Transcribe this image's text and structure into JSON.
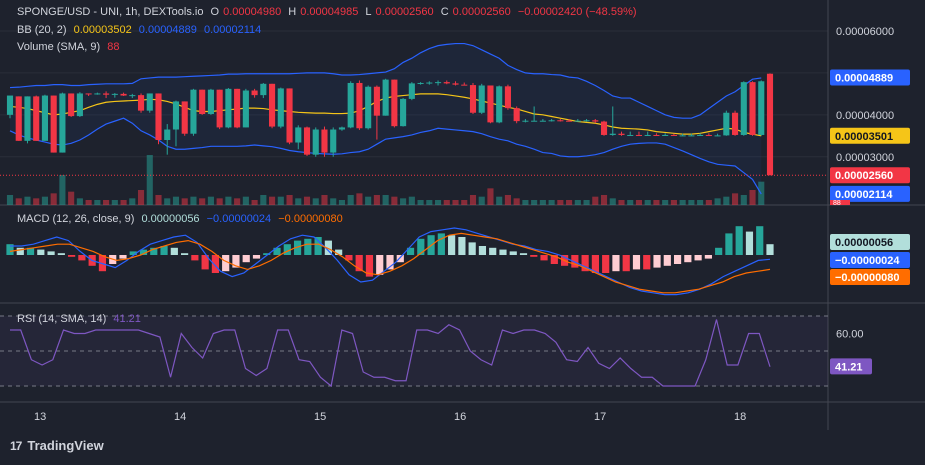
{
  "colors": {
    "up": "#26a69a",
    "down": "#f23645",
    "bb": "#2962ff",
    "bb_basis": "#f5c518",
    "macd": "#2962ff",
    "signal": "#ff6d00",
    "rsi": "#7e57c2",
    "axis_text": "#d1d4dc",
    "grid": "#2a2e39"
  },
  "header": {
    "symbol": "SPONGE/USD - UNI, 1h, DEXTools.io",
    "o_label": "O",
    "o_val": "0.00004980",
    "h_label": "H",
    "h_val": "0.00004985",
    "l_label": "L",
    "l_val": "0.00002560",
    "c_label": "C",
    "c_val": "0.00002560",
    "change": "−0.00002420 (−48.59%)"
  },
  "bb_legend": {
    "name": "BB (20, 2)",
    "basis": "0.00003502",
    "upper": "0.00004889",
    "lower": "0.00002114"
  },
  "volume_legend": {
    "name": "Volume (SMA, 9)",
    "value": "88"
  },
  "macd_legend": {
    "name": "MACD (12, 26, close, 9)",
    "hist": "0.00000056",
    "macd": "−0.00000024",
    "signal": "−0.00000080"
  },
  "rsi_legend": {
    "name": "RSI (14, SMA, 14)",
    "value": "41.21"
  },
  "brand": {
    "name": "TradingView",
    "logo": "17"
  },
  "chart_data": [
    {
      "type": "candlestick",
      "title": "SPONGE/USD - UNI, 1h, DEXTools.io",
      "x_ticks": [
        "13",
        "14",
        "15",
        "16",
        "17",
        "18"
      ],
      "y_ticks": [
        "0.00006000",
        "0.00004000",
        "0.00003000"
      ],
      "ylim": [
        1.85e-05,
        6.5e-05
      ],
      "price_labels": {
        "upper": "0.00004889",
        "basis": "0.00003501",
        "close": "0.00002560",
        "lower": "0.00002114",
        "volume": "88"
      },
      "candles": [
        [
          4e-05,
          4.44e-05,
          3.92e-05,
          4.46e-05
        ],
        [
          4.44e-05,
          4.44e-05,
          3.38e-05,
          3.38e-05
        ],
        [
          3.38e-05,
          4.44e-05,
          3.32e-05,
          4.44e-05
        ],
        [
          4.44e-05,
          4.46e-05,
          3.38e-05,
          3.38e-05
        ],
        [
          3.38e-05,
          4.48e-05,
          3.38e-05,
          4.46e-05
        ],
        [
          4.46e-05,
          4.46e-05,
          3.1e-05,
          3.1e-05
        ],
        [
          3.1e-05,
          4.53e-05,
          3.1e-05,
          4.51e-05
        ],
        [
          4.51e-05,
          4.51e-05,
          3.95e-05,
          3.97e-05
        ],
        [
          3.97e-05,
          4.54e-05,
          3.95e-05,
          4.51e-05
        ],
        [
          4.51e-05,
          4.51e-05,
          4.45e-05,
          4.49e-05
        ],
        [
          4.49e-05,
          4.53e-05,
          4.48e-05,
          4.51e-05
        ],
        [
          4.51e-05,
          4.56e-05,
          4.4e-05,
          4.48e-05
        ],
        [
          4.48e-05,
          4.52e-05,
          4.41e-05,
          4.5e-05
        ],
        [
          4.5e-05,
          4.53e-05,
          4.45e-05,
          4.46e-05
        ],
        [
          4.46e-05,
          4.5e-05,
          4.4e-05,
          4.47e-05
        ],
        [
          4.47e-05,
          4.51e-05,
          4.05e-05,
          4.1e-05
        ],
        [
          4.1e-05,
          4.51e-05,
          4.05e-05,
          4.51e-05
        ],
        [
          4.51e-05,
          4.51e-05,
          3.3e-05,
          3.4e-05
        ],
        [
          3.4e-05,
          3.78e-05,
          3.05e-05,
          3.65e-05
        ],
        [
          3.65e-05,
          4.34e-05,
          3.25e-05,
          4.32e-05
        ],
        [
          4.32e-05,
          4.32e-05,
          3.5e-05,
          3.55e-05
        ],
        [
          3.55e-05,
          4.62e-05,
          3.5e-05,
          4.6e-05
        ],
        [
          4.6e-05,
          4.6e-05,
          4e-05,
          4.02e-05
        ],
        [
          4.02e-05,
          4.62e-05,
          4e-05,
          4.6e-05
        ],
        [
          4.6e-05,
          4.6e-05,
          3.66e-05,
          3.7e-05
        ],
        [
          3.7e-05,
          4.64e-05,
          3.68e-05,
          4.62e-05
        ],
        [
          4.62e-05,
          4.62e-05,
          3.68e-05,
          3.7e-05
        ],
        [
          3.7e-05,
          4.62e-05,
          3.7e-05,
          4.58e-05
        ],
        [
          4.58e-05,
          4.62e-05,
          4.41e-05,
          4.47e-05
        ],
        [
          4.47e-05,
          4.76e-05,
          4.4e-05,
          4.74e-05
        ],
        [
          4.74e-05,
          4.74e-05,
          3.68e-05,
          3.72e-05
        ],
        [
          3.72e-05,
          4.65e-05,
          3.68e-05,
          4.63e-05
        ],
        [
          4.63e-05,
          4.63e-05,
          3.3e-05,
          3.34e-05
        ],
        [
          3.34e-05,
          3.75e-05,
          3.18e-05,
          3.7e-05
        ],
        [
          3.7e-05,
          3.72e-05,
          3.02e-05,
          3.05e-05
        ],
        [
          3.05e-05,
          3.7e-05,
          3e-05,
          3.65e-05
        ],
        [
          3.65e-05,
          3.72e-05,
          3e-05,
          3.1e-05
        ],
        [
          3.1e-05,
          3.7e-05,
          3e-05,
          3.65e-05
        ],
        [
          3.65e-05,
          3.72e-05,
          3.62e-05,
          3.7e-05
        ],
        [
          3.7e-05,
          4.8e-05,
          3.68e-05,
          4.76e-05
        ],
        [
          4.76e-05,
          4.82e-05,
          3.64e-05,
          3.68e-05
        ],
        [
          3.68e-05,
          4.7e-05,
          3.65e-05,
          4.67e-05
        ],
        [
          4.67e-05,
          4.7e-05,
          3.41e-05,
          3.98e-05
        ],
        [
          3.98e-05,
          4.86e-05,
          3.98e-05,
          4.84e-05
        ],
        [
          4.84e-05,
          4.84e-05,
          3.7e-05,
          3.73e-05
        ],
        [
          3.73e-05,
          4.4e-05,
          3.72e-05,
          4.38e-05
        ],
        [
          4.38e-05,
          4.78e-05,
          4.35e-05,
          4.75e-05
        ],
        [
          4.75e-05,
          4.78e-05,
          4.72e-05,
          4.76e-05
        ],
        [
          4.76e-05,
          4.8e-05,
          4.72e-05,
          4.77e-05
        ],
        [
          4.77e-05,
          4.82e-05,
          4.7e-05,
          4.78e-05
        ],
        [
          4.78e-05,
          4.82e-05,
          4.73e-05,
          4.75e-05
        ],
        [
          4.75e-05,
          4.8e-05,
          4.7e-05,
          4.72e-05
        ],
        [
          4.72e-05,
          4.77e-05,
          4.7e-05,
          4.71e-05
        ],
        [
          4.71e-05,
          4.76e-05,
          4.02e-05,
          4.05e-05
        ],
        [
          4.05e-05,
          4.74e-05,
          4.02e-05,
          4.7e-05
        ],
        [
          4.7e-05,
          4.7e-05,
          3.8e-05,
          3.82e-05
        ],
        [
          3.82e-05,
          4.7e-05,
          3.8e-05,
          4.68e-05
        ],
        [
          4.68e-05,
          4.72e-05,
          4.12e-05,
          4.16e-05
        ],
        [
          4.16e-05,
          4.2e-05,
          3.8e-05,
          3.85e-05
        ],
        [
          3.85e-05,
          3.9e-05,
          3.82e-05,
          3.86e-05
        ],
        [
          3.86e-05,
          4.2e-05,
          3.84e-05,
          3.86e-05
        ],
        [
          3.86e-05,
          3.9e-05,
          3.84e-05,
          3.86e-05
        ],
        [
          3.86e-05,
          3.9e-05,
          3.84e-05,
          3.87e-05
        ],
        [
          3.87e-05,
          3.9e-05,
          3.84e-05,
          3.86e-05
        ],
        [
          3.86e-05,
          3.9e-05,
          3.84e-05,
          3.85e-05
        ],
        [
          3.85e-05,
          3.9e-05,
          3.84e-05,
          3.86e-05
        ],
        [
          3.86e-05,
          3.9e-05,
          3.84e-05,
          3.87e-05
        ],
        [
          3.87e-05,
          3.9e-05,
          3.8e-05,
          3.84e-05
        ],
        [
          3.84e-05,
          3.86e-05,
          3.5e-05,
          3.52e-05
        ],
        [
          3.52e-05,
          4.2e-05,
          3.5e-05,
          3.55e-05
        ],
        [
          3.55e-05,
          3.6e-05,
          3.5e-05,
          3.52e-05
        ],
        [
          3.52e-05,
          3.6e-05,
          3.5e-05,
          3.52e-05
        ],
        [
          3.52e-05,
          3.6e-05,
          3.5e-05,
          3.51e-05
        ],
        [
          3.51e-05,
          3.6e-05,
          3.5e-05,
          3.52e-05
        ],
        [
          3.52e-05,
          3.56e-05,
          3.5e-05,
          3.51e-05
        ],
        [
          3.51e-05,
          3.56e-05,
          3.5e-05,
          3.52e-05
        ],
        [
          3.52e-05,
          3.55e-05,
          3.5e-05,
          3.51e-05
        ],
        [
          3.51e-05,
          3.55e-05,
          3.5e-05,
          3.51e-05
        ],
        [
          3.51e-05,
          3.55e-05,
          3.5e-05,
          3.51e-05
        ],
        [
          3.51e-05,
          3.56e-05,
          3.5e-05,
          3.52e-05
        ],
        [
          3.52e-05,
          3.56e-05,
          3.5e-05,
          3.51e-05
        ],
        [
          3.51e-05,
          3.55e-05,
          3.5e-05,
          3.51e-05
        ],
        [
          3.51e-05,
          4.1e-05,
          3.5e-05,
          4.05e-05
        ],
        [
          4.05e-05,
          4.1e-05,
          3.5e-05,
          3.52e-05
        ],
        [
          3.52e-05,
          4.8e-05,
          3.5e-05,
          4.78e-05
        ],
        [
          4.78e-05,
          4.8e-05,
          3.5e-05,
          3.52e-05
        ],
        [
          3.52e-05,
          4.82e-05,
          3.5e-05,
          4.8e-05
        ],
        [
          4.98e-05,
          4.99e-05,
          2.56e-05,
          2.56e-05
        ]
      ],
      "volume": [
        6,
        4,
        5,
        4,
        5,
        7,
        18,
        8,
        4,
        3,
        3,
        3,
        3,
        3,
        4,
        9,
        30,
        6,
        4,
        5,
        4,
        5,
        4,
        5,
        4,
        5,
        4,
        5,
        3,
        6,
        5,
        5,
        6,
        4,
        5,
        4,
        6,
        4,
        3,
        6,
        7,
        5,
        6,
        6,
        5,
        4,
        5,
        3,
        3,
        3,
        3,
        3,
        3,
        6,
        5,
        10,
        5,
        6,
        4,
        3,
        3,
        3,
        3,
        3,
        3,
        3,
        3,
        5,
        6,
        4,
        3,
        3,
        3,
        3,
        3,
        3,
        3,
        3,
        3,
        3,
        3,
        4,
        5,
        7,
        6,
        9,
        14
      ],
      "bb_upper": [
        4.65e-05,
        4.66e-05,
        4.68e-05,
        4.7e-05,
        4.7e-05,
        4.72e-05,
        4.72e-05,
        4.7e-05,
        4.7e-05,
        4.72e-05,
        4.73e-05,
        4.74e-05,
        4.74e-05,
        4.74e-05,
        4.75e-05,
        4.86e-05,
        4.88e-05,
        4.9e-05,
        4.9e-05,
        4.9e-05,
        4.91e-05,
        4.92e-05,
        4.93e-05,
        4.94e-05,
        4.95e-05,
        4.97e-05,
        4.97e-05,
        4.98e-05,
        4.98e-05,
        4.98e-05,
        4.98e-05,
        4.98e-05,
        4.98e-05,
        4.99e-05,
        5e-05,
        5e-05,
        5e-05,
        4.98e-05,
        4.95e-05,
        4.95e-05,
        4.96e-05,
        4.98e-05,
        5e-05,
        5.02e-05,
        5.1e-05,
        5.25e-05,
        5.35e-05,
        5.48e-05,
        5.58e-05,
        5.65e-05,
        5.68e-05,
        5.7e-05,
        5.7e-05,
        5.65e-05,
        5.55e-05,
        5.45e-05,
        5.35e-05,
        5.18e-05,
        5.08e-05,
        5e-05,
        4.98e-05,
        4.98e-05,
        4.96e-05,
        4.95e-05,
        4.9e-05,
        4.88e-05,
        4.8e-05,
        4.7e-05,
        4.58e-05,
        4.45e-05,
        4.4e-05,
        4.4e-05,
        4.3e-05,
        4.2e-05,
        4.1e-05,
        4e-05,
        3.94e-05,
        3.92e-05,
        3.92e-05,
        4e-05,
        4.15e-05,
        4.3e-05,
        4.45e-05,
        4.55e-05,
        4.7e-05,
        4.85e-05,
        4.88e-05
      ],
      "bb_basis": [
        4.2e-05,
        4.18e-05,
        4.15e-05,
        4.1e-05,
        4.05e-05,
        4e-05,
        4.02e-05,
        4.06e-05,
        4.1e-05,
        4.18e-05,
        4.25e-05,
        4.3e-05,
        4.32e-05,
        4.33e-05,
        4.34e-05,
        4.35e-05,
        4.37e-05,
        4.36e-05,
        4.32e-05,
        4.26e-05,
        4.18e-05,
        4.1e-05,
        4.08e-05,
        4.08e-05,
        4.1e-05,
        4.12e-05,
        4.14e-05,
        4.16e-05,
        4.16e-05,
        4.15e-05,
        4.12e-05,
        4.1e-05,
        4.08e-05,
        4.06e-05,
        4.05e-05,
        4.04e-05,
        4.04e-05,
        4.03e-05,
        4.03e-05,
        4.04e-05,
        4.1e-05,
        4.2e-05,
        4.32e-05,
        4.4e-05,
        4.44e-05,
        4.46e-05,
        4.48e-05,
        4.5e-05,
        4.5e-05,
        4.5e-05,
        4.48e-05,
        4.45e-05,
        4.42e-05,
        4.38e-05,
        4.33e-05,
        4.28e-05,
        4.23e-05,
        4.18e-05,
        4.14e-05,
        4.08e-05,
        4.02e-05,
        4e-05,
        3.96e-05,
        3.92e-05,
        3.88e-05,
        3.84e-05,
        3.82e-05,
        3.8e-05,
        3.76e-05,
        3.71e-05,
        3.68e-05,
        3.67e-05,
        3.66e-05,
        3.64e-05,
        3.6e-05,
        3.58e-05,
        3.56e-05,
        3.54e-05,
        3.54e-05,
        3.56e-05,
        3.6e-05,
        3.64e-05,
        3.68e-05,
        3.66e-05,
        3.58e-05,
        3.54e-05,
        3.5e-05
      ],
      "bb_lower": [
        3.62e-05,
        3.52e-05,
        3.45e-05,
        3.4e-05,
        3.35e-05,
        3.3e-05,
        3.28e-05,
        3.32e-05,
        3.4e-05,
        3.52e-05,
        3.66e-05,
        3.78e-05,
        3.85e-05,
        3.92e-05,
        3.8e-05,
        3.62e-05,
        3.52e-05,
        3.4e-05,
        3.25e-05,
        3.18e-05,
        3.18e-05,
        3.2e-05,
        3.22e-05,
        3.25e-05,
        3.25e-05,
        3.25e-05,
        3.25e-05,
        3.26e-05,
        3.28e-05,
        3.26e-05,
        3.24e-05,
        3.2e-05,
        3.15e-05,
        3.12e-05,
        3.1e-05,
        3.08e-05,
        3.07e-05,
        3.06e-05,
        3.07e-05,
        3.1e-05,
        3.12e-05,
        3.18e-05,
        3.3e-05,
        3.42e-05,
        3.45e-05,
        3.48e-05,
        3.52e-05,
        3.58e-05,
        3.62e-05,
        3.68e-05,
        3.66e-05,
        3.64e-05,
        3.62e-05,
        3.6e-05,
        3.55e-05,
        3.48e-05,
        3.42e-05,
        3.38e-05,
        3.3e-05,
        3.25e-05,
        3.18e-05,
        3.1e-05,
        3.08e-05,
        3.02e-05,
        3e-05,
        3e-05,
        3.02e-05,
        3.05e-05,
        3.1e-05,
        3.18e-05,
        3.25e-05,
        3.3e-05,
        3.32e-05,
        3.33e-05,
        3.33e-05,
        3.3e-05,
        3.22e-05,
        3.14e-05,
        3.05e-05,
        2.96e-05,
        2.88e-05,
        2.82e-05,
        2.8e-05,
        2.78e-05,
        2.62e-05,
        2.46e-05,
        2.11e-05
      ],
      "macd_hist": [
        0.6,
        0.4,
        0.4,
        0.3,
        0.2,
        0.1,
        -0.1,
        -0.3,
        -0.6,
        -0.9,
        -0.5,
        -0.2,
        0.2,
        0.3,
        0.4,
        0.5,
        0.4,
        0.1,
        -0.3,
        -0.8,
        -1.0,
        -0.9,
        -0.7,
        -0.4,
        -0.2,
        0.1,
        0.4,
        0.6,
        0.8,
        0.9,
        1.0,
        0.8,
        0.3,
        -0.3,
        -0.9,
        -1.2,
        -1.1,
        -0.8,
        -0.4,
        0.4,
        0.9,
        1.1,
        1.2,
        1.1,
        1.0,
        0.7,
        0.5,
        0.4,
        0.3,
        0.2,
        0.1,
        -0.1,
        -0.3,
        -0.5,
        -0.6,
        -0.7,
        -0.9,
        -1.0,
        -1.0,
        -0.9,
        -0.9,
        -0.8,
        -0.8,
        -0.7,
        -0.6,
        -0.5,
        -0.4,
        -0.3,
        -0.2,
        0.4,
        1.2,
        1.6,
        1.3,
        1.6,
        0.6
      ],
      "macd_line": [
        0.5,
        0.5,
        0.6,
        0.8,
        1.0,
        0.8,
        0.2,
        -0.3,
        -0.5,
        -0.7,
        -0.3,
        0.2,
        0.6,
        0.8,
        1.0,
        1.1,
        0.7,
        -0.2,
        -0.9,
        -1.2,
        -1.0,
        -0.5,
        0.0,
        0.5,
        0.9,
        1.1,
        1.0,
        0.4,
        -0.3,
        -1.1,
        -1.5,
        -1.4,
        -0.9,
        -0.4,
        0.3,
        1.0,
        1.3,
        1.4,
        1.5,
        1.4,
        1.2,
        1.0,
        0.8,
        0.6,
        0.5,
        0.3,
        0.2,
        0.0,
        -0.3,
        -0.6,
        -0.9,
        -1.2,
        -1.5,
        -1.8,
        -2.0,
        -2.1,
        -2.2,
        -2.2,
        -2.1,
        -1.9,
        -1.6,
        -1.2,
        -0.9,
        -0.6,
        -0.3,
        -0.24
      ],
      "macd_signal": [
        0.2,
        0.3,
        0.4,
        0.5,
        0.6,
        0.6,
        0.4,
        0.2,
        -0.1,
        -0.3,
        -0.2,
        0.0,
        0.3,
        0.5,
        0.7,
        0.8,
        0.6,
        0.2,
        -0.3,
        -0.6,
        -0.8,
        -0.6,
        -0.3,
        0.1,
        0.4,
        0.6,
        0.6,
        0.3,
        -0.1,
        -0.6,
        -1.0,
        -1.1,
        -0.9,
        -0.6,
        -0.2,
        0.3,
        0.8,
        1.1,
        1.2,
        1.1,
        1.0,
        0.9,
        0.7,
        0.5,
        0.3,
        0.1,
        -0.1,
        -0.4,
        -0.6,
        -0.9,
        -1.2,
        -1.5,
        -1.7,
        -1.9,
        -2.0,
        -2.1,
        -2.1,
        -2.0,
        -1.9,
        -1.7,
        -1.5,
        -1.2,
        -1.0,
        -0.9,
        -0.8
      ],
      "macd_y_ticks": [
        "0.00000056",
        "−0.00000024",
        "−0.00000080"
      ],
      "rsi": [
        62,
        62,
        45,
        42,
        45,
        62,
        60,
        60,
        62,
        62,
        62,
        62,
        62,
        60,
        58,
        35,
        60,
        52,
        46,
        60,
        62,
        62,
        40,
        36,
        40,
        62,
        62,
        45,
        44,
        35,
        30,
        62,
        60,
        38,
        35,
        35,
        33,
        33,
        62,
        62,
        60,
        65,
        62,
        50,
        45,
        42,
        62,
        60,
        62,
        62,
        60,
        55,
        45,
        44,
        52,
        43,
        40,
        46,
        40,
        35,
        35,
        30,
        30,
        30,
        30,
        45,
        68,
        42,
        42,
        60,
        60,
        41
      ],
      "rsi_y_ticks": [
        "60.00"
      ],
      "rsi_value": "41.21"
    }
  ]
}
